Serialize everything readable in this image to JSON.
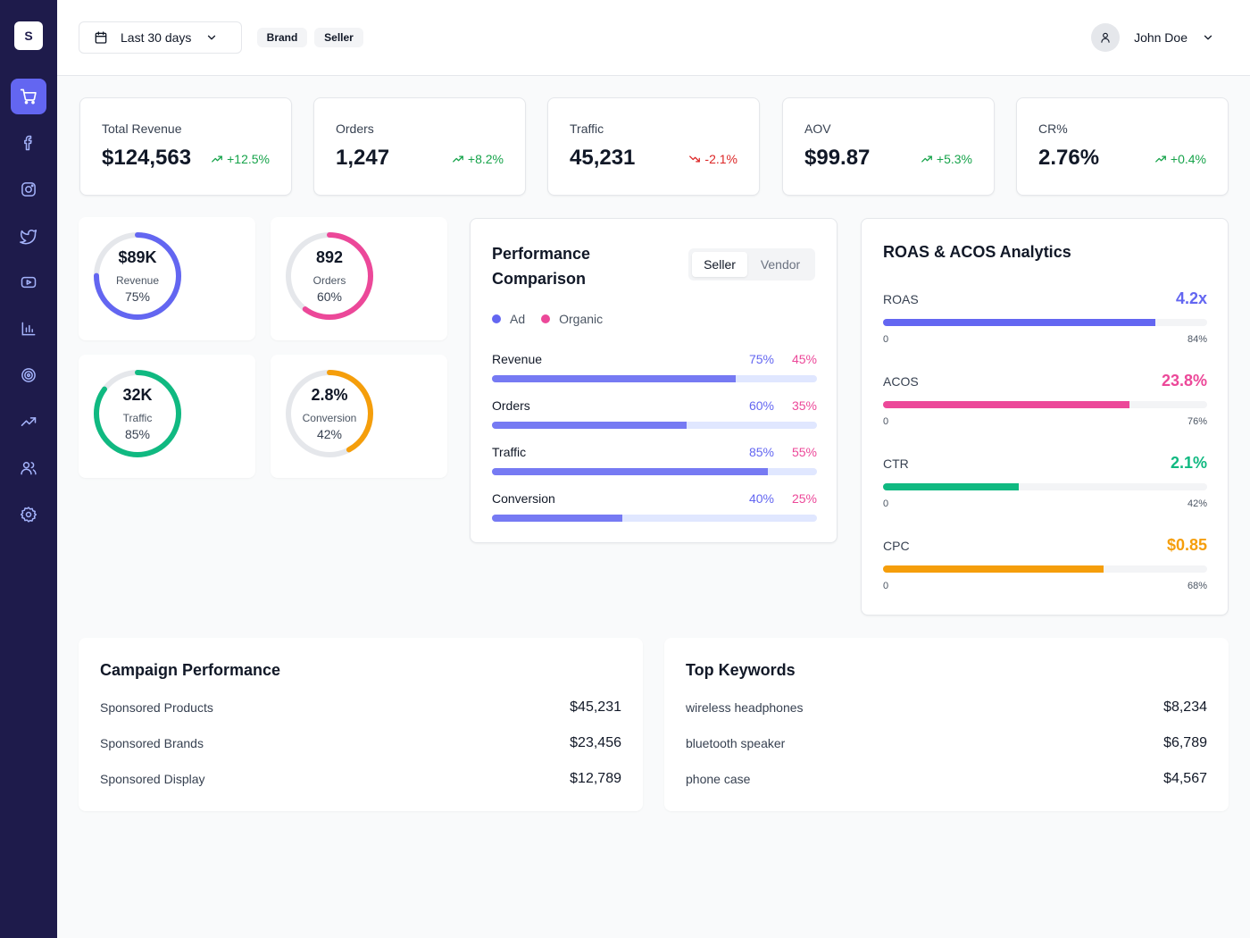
{
  "sidebar": {
    "logo": "S",
    "items": [
      {
        "icon": "cart-icon",
        "active": true
      },
      {
        "icon": "facebook-icon"
      },
      {
        "icon": "instagram-icon"
      },
      {
        "icon": "twitter-icon"
      },
      {
        "icon": "youtube-icon"
      },
      {
        "icon": "bar-chart-icon"
      },
      {
        "icon": "target-icon"
      },
      {
        "icon": "trending-up-icon"
      },
      {
        "icon": "users-icon"
      },
      {
        "icon": "settings-icon"
      }
    ]
  },
  "header": {
    "date_range": "Last 30 days",
    "pills": [
      "Brand",
      "Seller"
    ],
    "user_name": "John Doe"
  },
  "kpis": [
    {
      "label": "Total Revenue",
      "value": "$124,563",
      "delta": "+12.5%",
      "direction": "up"
    },
    {
      "label": "Orders",
      "value": "1,247",
      "delta": "+8.2%",
      "direction": "up"
    },
    {
      "label": "Traffic",
      "value": "45,231",
      "delta": "-2.1%",
      "direction": "down"
    },
    {
      "label": "AOV",
      "value": "$99.87",
      "delta": "+5.3%",
      "direction": "up"
    },
    {
      "label": "CR%",
      "value": "2.76%",
      "delta": "+0.4%",
      "direction": "up"
    }
  ],
  "rings": [
    {
      "value": "$89K",
      "label": "Revenue",
      "percent_text": "75%",
      "percent": 75,
      "color": "#6366f1"
    },
    {
      "value": "892",
      "label": "Orders",
      "percent_text": "60%",
      "percent": 60,
      "color": "#ec4899"
    },
    {
      "value": "32K",
      "label": "Traffic",
      "percent_text": "85%",
      "percent": 85,
      "color": "#10b981"
    },
    {
      "value": "2.8%",
      "label": "Conversion",
      "percent_text": "42%",
      "percent": 42,
      "color": "#f59e0b"
    }
  ],
  "performance": {
    "title": "Performance Comparison",
    "toggle": {
      "active": "Seller",
      "inactive": "Vendor"
    },
    "legend": [
      {
        "label": "Ad",
        "color": "#6366f1"
      },
      {
        "label": "Organic",
        "color": "#ec4899"
      }
    ],
    "rows": [
      {
        "name": "Revenue",
        "ad_text": "75%",
        "organic_text": "45%",
        "ad": 75
      },
      {
        "name": "Orders",
        "ad_text": "60%",
        "organic_text": "35%",
        "ad": 60
      },
      {
        "name": "Traffic",
        "ad_text": "85%",
        "organic_text": "55%",
        "ad": 85
      },
      {
        "name": "Conversion",
        "ad_text": "40%",
        "organic_text": "25%",
        "ad": 40
      }
    ]
  },
  "roas": {
    "title": "ROAS & ACOS Analytics",
    "metrics": [
      {
        "name": "ROAS",
        "value": "4.2x",
        "min": "0",
        "max": "84%",
        "fill": 84,
        "color": "#6366f1"
      },
      {
        "name": "ACOS",
        "value": "23.8%",
        "min": "0",
        "max": "76%",
        "fill": 76,
        "color": "#ec4899"
      },
      {
        "name": "CTR",
        "value": "2.1%",
        "min": "0",
        "max": "42%",
        "fill": 42,
        "color": "#10b981"
      },
      {
        "name": "CPC",
        "value": "$0.85",
        "min": "0",
        "max": "68%",
        "fill": 68,
        "color": "#f59e0b"
      }
    ]
  },
  "campaign": {
    "title": "Campaign Performance",
    "rows": [
      {
        "label": "Sponsored Products",
        "value": "$45,231"
      },
      {
        "label": "Sponsored Brands",
        "value": "$23,456"
      },
      {
        "label": "Sponsored Display",
        "value": "$12,789"
      }
    ]
  },
  "keywords": {
    "title": "Top Keywords",
    "rows": [
      {
        "label": "wireless headphones",
        "value": "$8,234"
      },
      {
        "label": "bluetooth speaker",
        "value": "$6,789"
      },
      {
        "label": "phone case",
        "value": "$4,567"
      }
    ]
  }
}
